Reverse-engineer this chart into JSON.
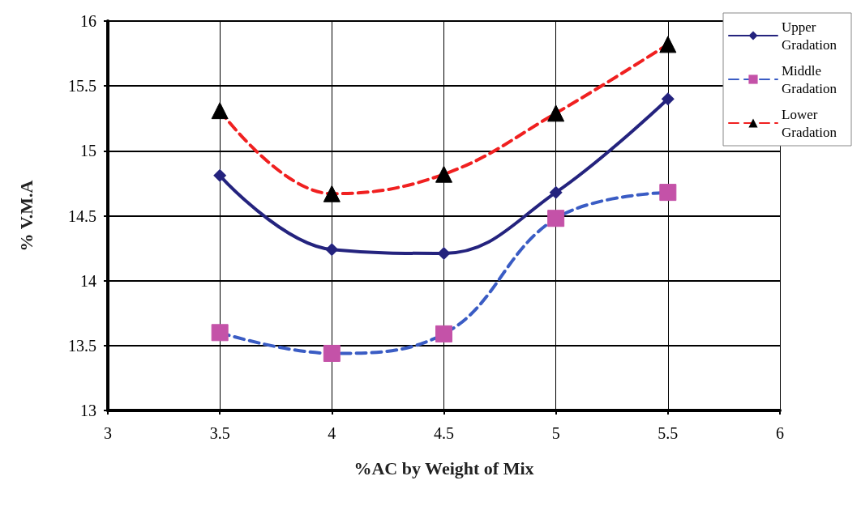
{
  "chart_data": {
    "type": "line",
    "xlabel": "%AC by Weight of Mix",
    "ylabel": "% V.M.A",
    "x": [
      3.5,
      4,
      4.5,
      5,
      5.5
    ],
    "series": [
      {
        "name": "Upper Gradation",
        "color": "#24237e",
        "values": [
          14.81,
          14.24,
          14.21,
          14.68,
          15.4
        ],
        "marker": "diamond",
        "line_style": "solid"
      },
      {
        "name": "Middle Gradation",
        "color": "#3a5cc4",
        "colors": [
          "#c452a8",
          "#c452a8",
          "#c452a8",
          "#c452a8",
          "#c452a8"
        ],
        "values": [
          13.6,
          13.44,
          13.59,
          14.48,
          14.68
        ],
        "marker": "square",
        "line_style": "dashed"
      },
      {
        "name": "Lower Gradation",
        "color": "#f02020",
        "colors": [
          "#000000",
          "#000000",
          "#000000",
          "#000000",
          "#000000"
        ],
        "values": [
          15.31,
          14.67,
          14.82,
          15.29,
          15.82
        ],
        "marker": "triangle",
        "line_style": "dashed"
      }
    ],
    "xlim": [
      3,
      6
    ],
    "xticks": [
      3,
      3.5,
      4,
      4.5,
      5,
      5.5,
      6
    ],
    "ylim": [
      13,
      16
    ],
    "yticks": [
      13,
      13.5,
      14,
      14.5,
      15,
      15.5,
      16
    ],
    "grid": true,
    "legend": "top right"
  }
}
